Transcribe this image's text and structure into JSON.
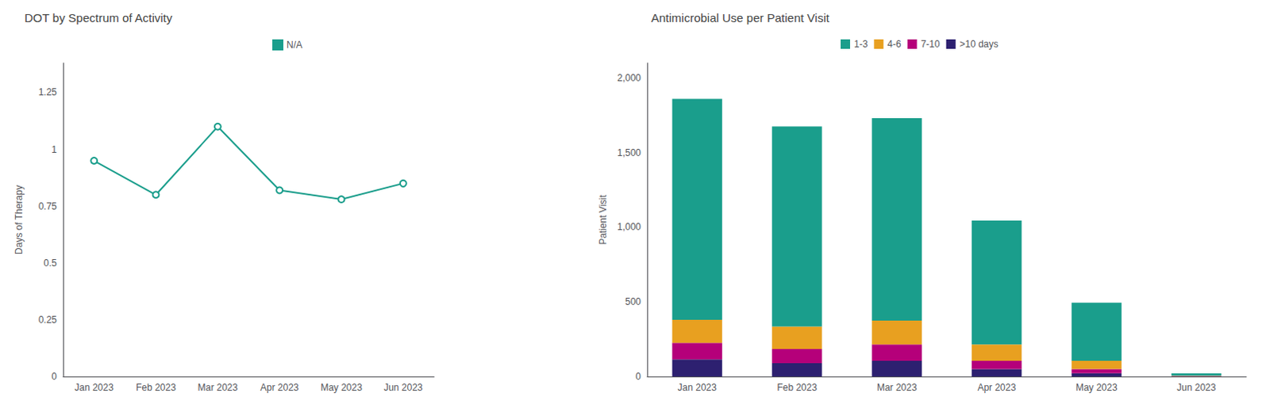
{
  "chart_data": [
    {
      "type": "line",
      "title": "DOT by Spectrum of Activity",
      "categories": [
        "Jan 2023",
        "Feb 2023",
        "Mar 2023",
        "Apr 2023",
        "May 2023",
        "Jun 2023"
      ],
      "series": [
        {
          "name": "N/A",
          "color": "#1a9e8c",
          "marker": "circle",
          "values": [
            0.95,
            0.8,
            1.1,
            0.82,
            0.78,
            0.85
          ]
        }
      ],
      "ylabel": "Days of Therapy",
      "ylim": [
        0,
        1.38
      ],
      "yticks": [
        0,
        0.25,
        0.5,
        0.75,
        1,
        1.25
      ],
      "grid": false,
      "legend": "top"
    },
    {
      "type": "bar",
      "title": "Antimicrobial Use per Patient Visit",
      "categories": [
        "Jan 2023",
        "Feb 2023",
        "Mar 2023",
        "Apr 2023",
        "May 2023",
        "Jun 2023"
      ],
      "series": [
        {
          "name": ">10 days",
          "color": "#2d2070",
          "values": [
            115,
            90,
            105,
            50,
            22,
            2
          ]
        },
        {
          "name": "7-10",
          "color": "#b5007a",
          "values": [
            110,
            95,
            110,
            55,
            28,
            2
          ]
        },
        {
          "name": "4-6",
          "color": "#e8a020",
          "values": [
            155,
            150,
            160,
            110,
            55,
            3
          ]
        },
        {
          "name": "1-3",
          "color": "#1a9e8c",
          "values": [
            1480,
            1340,
            1355,
            830,
            390,
            14
          ]
        }
      ],
      "stacked": true,
      "ylabel": "Patient Visit",
      "ylim": [
        0,
        2100
      ],
      "yticks": [
        0,
        500,
        {
          "value": 1000,
          "label": "1,000"
        },
        {
          "value": 1500,
          "label": "1,500"
        },
        {
          "value": 2000,
          "label": "2,000"
        }
      ],
      "grid": false,
      "legend": "top"
    }
  ]
}
